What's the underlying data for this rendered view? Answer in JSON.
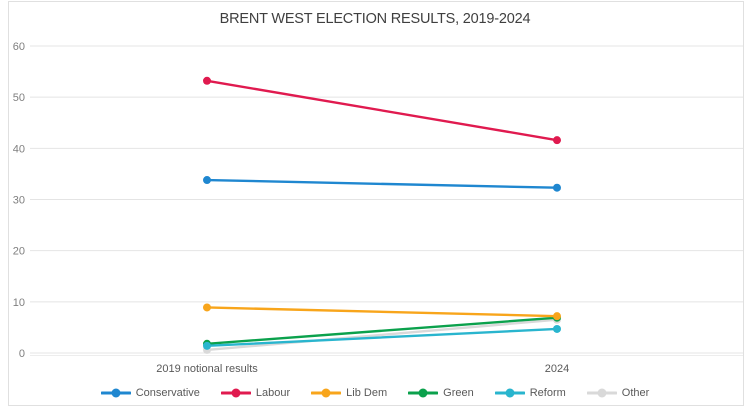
{
  "chart_data": {
    "type": "line",
    "title": "BRENT WEST ELECTION RESULTS, 2019-2024",
    "categories": [
      "2019 notional results",
      "2024"
    ],
    "series": [
      {
        "name": "Conservative",
        "color": "#1f87d0",
        "values": [
          33.8,
          32.3
        ]
      },
      {
        "name": "Labour",
        "color": "#e01a4f",
        "values": [
          53.2,
          41.6
        ]
      },
      {
        "name": "Lib Dem",
        "color": "#f8a51b",
        "values": [
          8.9,
          7.2
        ]
      },
      {
        "name": "Green",
        "color": "#0ba14c",
        "values": [
          1.8,
          6.9
        ]
      },
      {
        "name": "Reform",
        "color": "#29b5ce",
        "values": [
          1.4,
          4.7
        ]
      },
      {
        "name": "Other",
        "color": "#d9d9d9",
        "values": [
          0.6,
          6.5
        ]
      }
    ],
    "xlabel": "",
    "ylabel": "",
    "ylim": [
      0,
      60
    ],
    "yticks": [
      0,
      10,
      20,
      30,
      40,
      50,
      60
    ],
    "grid": true,
    "legend_position": "bottom",
    "gridline_color": "#e4e4e4",
    "axis_line_color": "#ededed",
    "tick_label_color": "#7f7f7f",
    "category_label_color": "#595959",
    "title_color": "#3f3f3f",
    "background_color": "#ffffff"
  }
}
